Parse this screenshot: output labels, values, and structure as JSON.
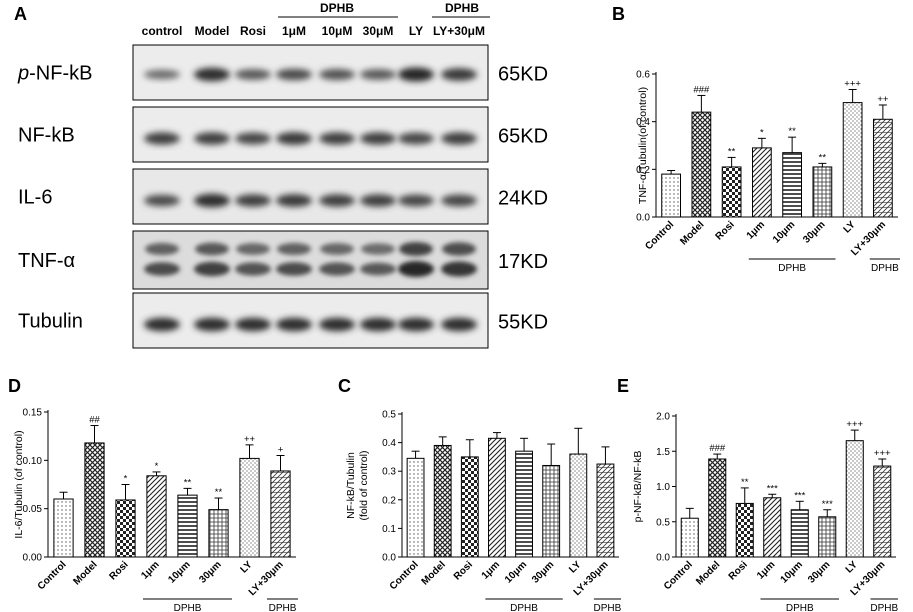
{
  "panels": {
    "A": "A",
    "B": "B",
    "C": "C",
    "D": "D",
    "E": "E"
  },
  "blot": {
    "lanes": [
      "control",
      "Model",
      "Rosi",
      "1μM",
      "10μM",
      "30μM",
      "LY",
      "LY+30μM"
    ],
    "group_label": "DPHB",
    "proteins": [
      {
        "name": "NF-kB",
        "prefix": "p-",
        "kd": "65KD"
      },
      {
        "name": "NF-kB",
        "prefix": "",
        "kd": "65KD"
      },
      {
        "name": "IL-6",
        "prefix": "",
        "kd": "24KD"
      },
      {
        "name": "TNF-α",
        "prefix": "",
        "kd": "17KD"
      },
      {
        "name": "Tubulin",
        "prefix": "",
        "kd": "55KD"
      }
    ]
  },
  "chart_data": [
    {
      "panel": "B",
      "type": "bar",
      "categories": [
        "Control",
        "Model",
        "Rosi",
        "1μm",
        "10μm",
        "30μm",
        "LY",
        "LY+30μm"
      ],
      "values": [
        0.18,
        0.44,
        0.21,
        0.29,
        0.27,
        0.21,
        0.48,
        0.41
      ],
      "errors": [
        0.015,
        0.07,
        0.04,
        0.04,
        0.065,
        0.015,
        0.055,
        0.06
      ],
      "annotations": [
        "",
        "###",
        "**",
        "*",
        "**",
        "**",
        "+++",
        "++"
      ],
      "ylabel": "TNF-α/Tubulin(of control)",
      "ylim": [
        0,
        0.6
      ],
      "yticks": [
        "0.0",
        "0.2",
        "0.4",
        "0.6"
      ],
      "group_labels": [
        "DPHB",
        "DPHB"
      ]
    },
    {
      "panel": "D",
      "type": "bar",
      "categories": [
        "Control",
        "Model",
        "Rosi",
        "1μm",
        "10μm",
        "30μm",
        "LY",
        "LY+30μm"
      ],
      "values": [
        0.06,
        0.118,
        0.059,
        0.084,
        0.064,
        0.049,
        0.102,
        0.089
      ],
      "errors": [
        0.007,
        0.018,
        0.016,
        0.004,
        0.007,
        0.012,
        0.014,
        0.016
      ],
      "annotations": [
        "",
        "##",
        "*",
        "*",
        "**",
        "**",
        "++",
        "+"
      ],
      "ylabel": "IL-6/Tubulin (of control)",
      "ylim": [
        0,
        0.15
      ],
      "yticks": [
        "0.00",
        "0.05",
        "0.10",
        "0.15"
      ],
      "group_labels": [
        "DPHB",
        "DPHB"
      ]
    },
    {
      "panel": "C",
      "type": "bar",
      "categories": [
        "Control",
        "Model",
        "Rosi",
        "1μm",
        "10μm",
        "30μm",
        "LY",
        "LY+30μm"
      ],
      "values": [
        0.345,
        0.39,
        0.35,
        0.415,
        0.37,
        0.32,
        0.36,
        0.325
      ],
      "errors": [
        0.025,
        0.03,
        0.06,
        0.02,
        0.045,
        0.075,
        0.09,
        0.06
      ],
      "annotations": [
        "",
        "",
        "",
        "",
        "",
        "",
        "",
        ""
      ],
      "ylabel": "NF-kB/Tubulin (fold of control)",
      "ylim": [
        0,
        0.5
      ],
      "yticks": [
        "0.0",
        "0.1",
        "0.2",
        "0.3",
        "0.4",
        "0.5"
      ],
      "group_labels": [
        "DPHB",
        "DPHB"
      ]
    },
    {
      "panel": "E",
      "type": "bar",
      "categories": [
        "Control",
        "Model",
        "Rosi",
        "1μm",
        "10μm",
        "30μm",
        "LY",
        "LY+30μm"
      ],
      "values": [
        0.55,
        1.39,
        0.76,
        0.84,
        0.67,
        0.57,
        1.65,
        1.29
      ],
      "errors": [
        0.14,
        0.07,
        0.22,
        0.05,
        0.12,
        0.1,
        0.15,
        0.1
      ],
      "annotations": [
        "",
        "###",
        "**",
        "***",
        "***",
        "***",
        "+++",
        "+++"
      ],
      "ylabel": "p-NF-kB/NF-kB",
      "ylim": [
        0,
        2.0
      ],
      "yticks": [
        "0.0",
        "0.5",
        "1.0",
        "1.5",
        "2.0"
      ],
      "group_labels": [
        "DPHB",
        "DPHB"
      ]
    }
  ]
}
